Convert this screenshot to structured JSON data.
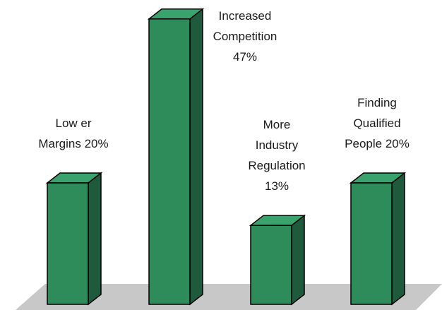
{
  "chart_data": {
    "type": "bar",
    "title": "",
    "xlabel": "",
    "ylabel": "",
    "ylim": [
      0,
      50
    ],
    "grid": false,
    "legend": "none",
    "categories": [
      "Lower Margins",
      "Increased Competition",
      "More Industry Regulation",
      "Finding Qualified People"
    ],
    "values": [
      20,
      47,
      13,
      20
    ],
    "data_labels": [
      [
        "Low er",
        "Margins 20%"
      ],
      [
        "Increased",
        "Competition",
        "47%"
      ],
      [
        "More",
        "Industry",
        "Regulation",
        "13%"
      ],
      [
        "Finding",
        "Qualified",
        "People 20%"
      ]
    ],
    "colors": {
      "bar_front": "#2e8b5a",
      "bar_side": "#1f5a3c",
      "bar_top": "#3aa26c",
      "bar_outline": "#000000",
      "floor": "#c8c8c8"
    }
  }
}
